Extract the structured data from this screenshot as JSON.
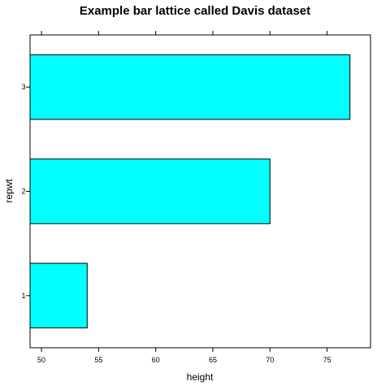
{
  "chart_data": {
    "type": "bar",
    "orientation": "horizontal",
    "title": "Example bar lattice called Davis dataset",
    "xlabel": "height",
    "ylabel": "repwt",
    "categories": [
      "1",
      "2",
      "3"
    ],
    "values": [
      54,
      70,
      77
    ],
    "xlim": [
      49,
      78.8
    ],
    "xticks": [
      50,
      55,
      60,
      65,
      70,
      75
    ],
    "grid": false,
    "legend": "none",
    "bar_color": "#00FFFF",
    "bar_stroke": "#000000"
  }
}
